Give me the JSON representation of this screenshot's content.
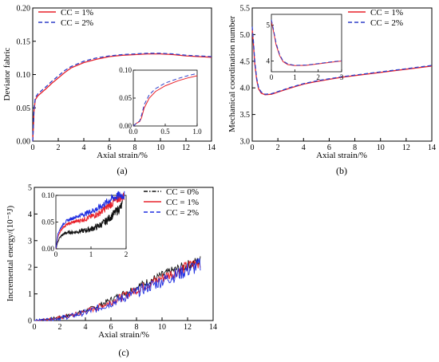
{
  "chart_data": [
    {
      "id": "a",
      "type": "line",
      "panel_label": "(a)",
      "xlabel": "Axial strain/%",
      "ylabel": "Deviator fabric",
      "xlim": [
        0,
        14
      ],
      "ylim": [
        0,
        0.2
      ],
      "xticks": [
        "0",
        "2",
        "4",
        "6",
        "8",
        "10",
        "12",
        "14"
      ],
      "yticks": [
        "0.00",
        "0.05",
        "0.10",
        "0.15",
        "0.20"
      ],
      "legend_position": "top-left",
      "series": [
        {
          "name": "CC = 1%",
          "color": "#e8202a",
          "dash": "solid",
          "x": [
            0,
            0.05,
            0.1,
            0.2,
            0.4,
            0.7,
            1,
            1.5,
            2,
            2.5,
            3,
            4,
            5,
            6,
            7,
            8,
            9,
            10,
            11,
            12,
            13,
            14
          ],
          "y": [
            0.0,
            0.02,
            0.045,
            0.062,
            0.068,
            0.073,
            0.078,
            0.087,
            0.095,
            0.103,
            0.11,
            0.118,
            0.123,
            0.127,
            0.129,
            0.13,
            0.131,
            0.131,
            0.13,
            0.128,
            0.127,
            0.126
          ]
        },
        {
          "name": "CC = 2%",
          "color": "#2e3fc9",
          "dash": "dashed",
          "x": [
            0,
            0.05,
            0.1,
            0.2,
            0.4,
            0.7,
            1,
            1.5,
            2,
            2.5,
            3,
            4,
            5,
            6,
            7,
            8,
            9,
            10,
            11,
            12,
            13,
            14
          ],
          "y": [
            0.0,
            0.022,
            0.048,
            0.065,
            0.071,
            0.076,
            0.081,
            0.09,
            0.098,
            0.106,
            0.112,
            0.12,
            0.125,
            0.128,
            0.13,
            0.131,
            0.132,
            0.132,
            0.131,
            0.129,
            0.128,
            0.127
          ]
        }
      ],
      "inset": {
        "xlim": [
          0,
          1.0
        ],
        "ylim": [
          0,
          0.1
        ],
        "xticks": [
          "0.0",
          "0.5",
          "1.0"
        ],
        "yticks": [
          "0.00",
          "0.05",
          "0.10"
        ],
        "series": [
          {
            "name": "CC = 1%",
            "x": [
              0,
              0.05,
              0.1,
              0.13,
              0.17,
              0.25,
              0.35,
              0.5,
              0.7,
              0.85,
              1.0
            ],
            "y": [
              0.0,
              0.005,
              0.008,
              0.015,
              0.032,
              0.05,
              0.062,
              0.072,
              0.081,
              0.086,
              0.09
            ]
          },
          {
            "name": "CC = 2%",
            "x": [
              0,
              0.05,
              0.1,
              0.13,
              0.17,
              0.25,
              0.35,
              0.5,
              0.7,
              0.85,
              1.0
            ],
            "y": [
              0.0,
              0.005,
              0.009,
              0.02,
              0.038,
              0.056,
              0.067,
              0.077,
              0.085,
              0.09,
              0.094
            ]
          }
        ]
      }
    },
    {
      "id": "b",
      "type": "line",
      "panel_label": "(b)",
      "xlabel": "Axial strain/%",
      "ylabel": "Mechanical coordination number",
      "xlim": [
        0,
        14
      ],
      "ylim": [
        3.0,
        5.5
      ],
      "xticks": [
        "0",
        "2",
        "4",
        "6",
        "8",
        "10",
        "12",
        "14"
      ],
      "yticks": [
        "3.0",
        "3.5",
        "4.0",
        "4.5",
        "5.0",
        "5.5"
      ],
      "legend_position": "top-right",
      "series": [
        {
          "name": "CC = 1%",
          "color": "#e8202a",
          "dash": "solid",
          "x": [
            0,
            0.1,
            0.2,
            0.35,
            0.5,
            0.7,
            1.0,
            1.5,
            2,
            3,
            4,
            5,
            6,
            7,
            8,
            9,
            10,
            11,
            12,
            13,
            14
          ],
          "y": [
            5.1,
            4.8,
            4.45,
            4.15,
            3.98,
            3.9,
            3.87,
            3.88,
            3.92,
            4.0,
            4.07,
            4.12,
            4.16,
            4.2,
            4.23,
            4.26,
            4.29,
            4.32,
            4.35,
            4.38,
            4.41
          ]
        },
        {
          "name": "CC = 2%",
          "color": "#2e3fc9",
          "dash": "dashed",
          "x": [
            0,
            0.1,
            0.2,
            0.35,
            0.5,
            0.7,
            1.0,
            1.5,
            2,
            3,
            4,
            5,
            6,
            7,
            8,
            9,
            10,
            11,
            12,
            13,
            14
          ],
          "y": [
            5.15,
            4.85,
            4.5,
            4.18,
            4.0,
            3.92,
            3.88,
            3.89,
            3.93,
            4.01,
            4.08,
            4.13,
            4.17,
            4.21,
            4.24,
            4.27,
            4.3,
            4.33,
            4.36,
            4.39,
            4.42
          ]
        }
      ],
      "inset": {
        "xlim": [
          0,
          3
        ],
        "ylim": [
          3.7,
          5.3
        ],
        "xticks": [
          "0",
          "1",
          "2",
          "3"
        ],
        "yticks": [
          "4",
          "5"
        ],
        "series": [
          {
            "name": "CC = 1%",
            "x": [
              0,
              0.1,
              0.2,
              0.35,
              0.5,
              0.7,
              1.0,
              1.5,
              2,
              2.5,
              3
            ],
            "y": [
              5.1,
              4.8,
              4.45,
              4.15,
              3.98,
              3.9,
              3.87,
              3.88,
              3.92,
              3.96,
              4.0
            ]
          },
          {
            "name": "CC = 2%",
            "x": [
              0,
              0.1,
              0.2,
              0.35,
              0.5,
              0.7,
              1.0,
              1.5,
              2,
              2.5,
              3
            ],
            "y": [
              5.15,
              4.85,
              4.5,
              4.18,
              4.0,
              3.92,
              3.88,
              3.89,
              3.93,
              3.97,
              4.01
            ]
          }
        ]
      }
    },
    {
      "id": "c",
      "type": "line",
      "panel_label": "(c)",
      "xlabel": "Axial strain/%",
      "ylabel": "Incremental energy/(10⁻⁵J)",
      "xlim": [
        0,
        14
      ],
      "ylim": [
        0,
        5
      ],
      "xticks": [
        "0",
        "2",
        "4",
        "6",
        "8",
        "10",
        "12",
        "14"
      ],
      "yticks": [
        "0",
        "1",
        "2",
        "3",
        "4",
        "5"
      ],
      "legend_position": "top-right",
      "series": [
        {
          "name": "CC = 0%",
          "color": "#111111",
          "dash": "dashdot",
          "x": [
            0,
            1,
            2,
            3,
            4,
            5,
            6,
            7,
            8,
            9,
            10,
            11,
            12,
            13
          ],
          "y": [
            0.0,
            0.05,
            0.12,
            0.22,
            0.36,
            0.55,
            0.78,
            1.02,
            1.25,
            1.48,
            1.7,
            1.9,
            2.08,
            2.25
          ]
        },
        {
          "name": "CC = 1%",
          "color": "#e8202a",
          "dash": "solid",
          "x": [
            0,
            1,
            2,
            3,
            4,
            5,
            6,
            7,
            8,
            9,
            10,
            11,
            12,
            13
          ],
          "y": [
            0.0,
            0.04,
            0.1,
            0.2,
            0.33,
            0.5,
            0.7,
            0.92,
            1.15,
            1.38,
            1.6,
            1.82,
            2.02,
            2.2
          ]
        },
        {
          "name": "CC = 2%",
          "color": "#1f2ee0",
          "dash": "dashed",
          "x": [
            0,
            1,
            2,
            3,
            4,
            5,
            6,
            7,
            8,
            9,
            10,
            11,
            12,
            13
          ],
          "y": [
            0.0,
            0.04,
            0.09,
            0.18,
            0.3,
            0.46,
            0.65,
            0.86,
            1.07,
            1.28,
            1.49,
            1.7,
            1.9,
            2.08
          ]
        }
      ],
      "inset": {
        "xlim": [
          0,
          2
        ],
        "ylim": [
          0,
          0.1
        ],
        "xticks": [
          "0",
          "1",
          "2"
        ],
        "yticks": [
          "0.00",
          "0.05",
          "0.10"
        ],
        "series": [
          {
            "name": "CC = 0%",
            "x": [
              0,
              0.05,
              0.1,
              0.2,
              0.3,
              0.5,
              0.8,
              1.0,
              1.2,
              1.4,
              1.6,
              1.8,
              1.9
            ],
            "y": [
              0.0,
              0.012,
              0.02,
              0.027,
              0.03,
              0.031,
              0.034,
              0.037,
              0.042,
              0.05,
              0.062,
              0.075,
              0.082
            ]
          },
          {
            "name": "CC = 1%",
            "x": [
              0,
              0.05,
              0.1,
              0.2,
              0.3,
              0.5,
              0.8,
              1.0,
              1.2,
              1.4,
              1.6,
              1.8,
              1.95
            ],
            "y": [
              0.0,
              0.02,
              0.03,
              0.04,
              0.045,
              0.05,
              0.055,
              0.06,
              0.065,
              0.075,
              0.085,
              0.095,
              0.098
            ]
          },
          {
            "name": "CC = 2%",
            "x": [
              0,
              0.05,
              0.1,
              0.2,
              0.3,
              0.5,
              0.8,
              1.0,
              1.2,
              1.4,
              1.6,
              1.8,
              1.95
            ],
            "y": [
              0.0,
              0.025,
              0.035,
              0.045,
              0.052,
              0.058,
              0.065,
              0.07,
              0.075,
              0.085,
              0.094,
              0.1,
              0.1
            ]
          }
        ]
      }
    }
  ]
}
